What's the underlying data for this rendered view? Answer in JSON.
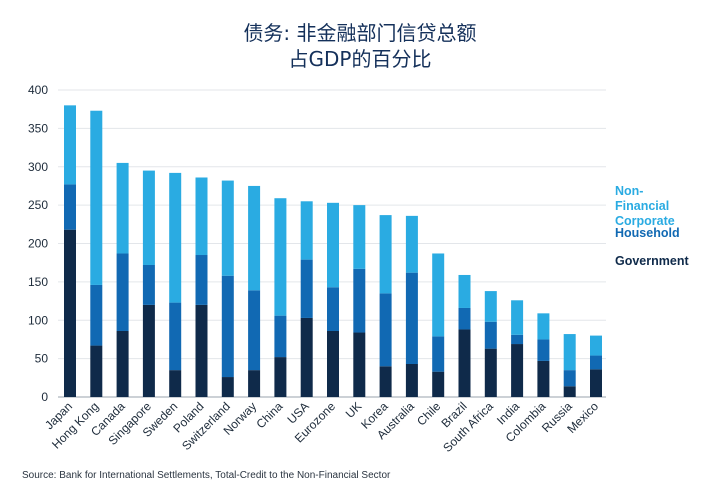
{
  "chart_data": {
    "type": "bar",
    "stacked": true,
    "title": "债务: 非金融部门信贷总额",
    "subtitle": "占GDP的百分比",
    "xlabel": "",
    "ylabel": "",
    "ylim": [
      0,
      400
    ],
    "yticks": [
      0,
      50,
      100,
      150,
      200,
      250,
      300,
      350,
      400
    ],
    "grid": true,
    "legend_position": "right",
    "categories": [
      "Japan",
      "Hong Kong",
      "Canada",
      "Singapore",
      "Sweden",
      "Poland",
      "Switzerland",
      "Norway",
      "China",
      "USA",
      "Eurozone",
      "UK",
      "Korea",
      "Australia",
      "Chile",
      "Brazil",
      "South Africa",
      "India",
      "Colombia",
      "Russia",
      "Mexico"
    ],
    "series": [
      {
        "name": "Government",
        "color": "#0f2a4a",
        "values": [
          218,
          67,
          86,
          120,
          35,
          120,
          26,
          35,
          52,
          103,
          86,
          84,
          40,
          43,
          33,
          88,
          63,
          69,
          47,
          14,
          36
        ]
      },
      {
        "name": "Household",
        "color": "#1169b3",
        "values": [
          59,
          79,
          101,
          52,
          88,
          65,
          132,
          104,
          54,
          76,
          57,
          83,
          95,
          119,
          46,
          28,
          35,
          12,
          28,
          21,
          18
        ]
      },
      {
        "name": "Non-Financial Corporate",
        "color": "#2aabe2",
        "values": [
          103,
          227,
          118,
          123,
          169,
          101,
          124,
          136,
          153,
          76,
          110,
          83,
          102,
          74,
          108,
          43,
          40,
          45,
          34,
          47,
          26
        ]
      }
    ]
  },
  "legend": [
    {
      "label": "Non-Financial\nCorporate",
      "color": "#2aabe2"
    },
    {
      "label": "Household",
      "color": "#1169b3"
    },
    {
      "label": "Government",
      "color": "#0f2a4a"
    }
  ],
  "source": "Source: Bank for International Settlements, Total-Credit to the Non-Financial Sector"
}
